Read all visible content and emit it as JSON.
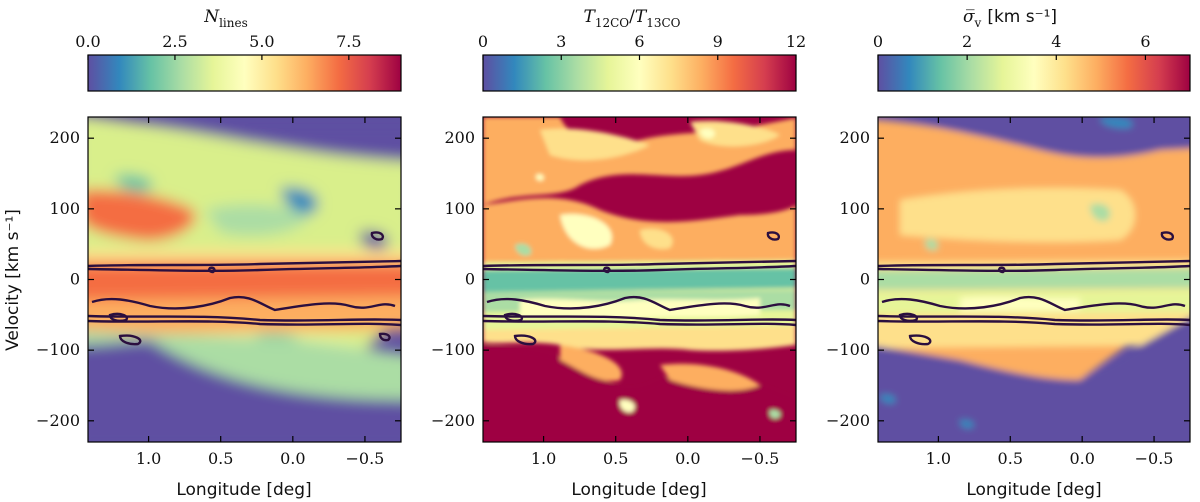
{
  "chart_data": [
    {
      "type": "heatmap",
      "panel": "left",
      "colorbar_title": "N_lines",
      "colorbar_title_main": "N",
      "colorbar_title_sub": "lines",
      "colorbar_range": [
        0,
        9
      ],
      "colorbar_ticks": [
        0.0,
        2.5,
        5.0,
        7.5
      ],
      "colorbar_tick_labels": [
        "0.0",
        "2.5",
        "5.0",
        "7.5"
      ],
      "xlabel": "Longitude [deg]",
      "ylabel": "Velocity [km s⁻¹]",
      "xlim": [
        1.42,
        -0.75
      ],
      "ylim": [
        -230,
        230
      ],
      "xticks": [
        1.0,
        0.5,
        0.0,
        -0.5
      ],
      "xtick_labels": [
        "1.0",
        "0.5",
        "0.0",
        "−0.5"
      ],
      "yticks": [
        200,
        100,
        0,
        -100,
        -200
      ],
      "ytick_labels": [
        "200",
        "100",
        "0",
        "−100",
        "−200"
      ]
    },
    {
      "type": "heatmap",
      "panel": "middle",
      "colorbar_title": "T12CO/T13CO",
      "colorbar_title_a": "T",
      "colorbar_title_a_sub": "12CO",
      "colorbar_title_slash": "/",
      "colorbar_title_b": "T",
      "colorbar_title_b_sub": "13CO",
      "colorbar_range": [
        0,
        12
      ],
      "colorbar_ticks": [
        0,
        3,
        6,
        9,
        12
      ],
      "colorbar_tick_labels": [
        "0",
        "3",
        "6",
        "9",
        "12"
      ],
      "xlabel": "Longitude [deg]",
      "xlim": [
        1.42,
        -0.75
      ],
      "ylim": [
        -230,
        230
      ],
      "xticks": [
        1.0,
        0.5,
        0.0,
        -0.5
      ],
      "xtick_labels": [
        "1.0",
        "0.5",
        "0.0",
        "−0.5"
      ],
      "yticks": [
        200,
        100,
        0,
        -100,
        -200
      ],
      "ytick_labels": [
        "200",
        "100",
        "0",
        "−100",
        "−200"
      ]
    },
    {
      "type": "heatmap",
      "panel": "right",
      "colorbar_title": "σ̅_v [km s⁻¹]",
      "colorbar_title_main": "σ̅",
      "colorbar_title_sub": "v",
      "colorbar_title_unit": "[km s⁻¹]",
      "colorbar_range": [
        0,
        7
      ],
      "colorbar_ticks": [
        0,
        2,
        4,
        6
      ],
      "colorbar_tick_labels": [
        "0",
        "2",
        "4",
        "6"
      ],
      "xlabel": "Longitude [deg]",
      "xlim": [
        1.42,
        -0.75
      ],
      "ylim": [
        -230,
        230
      ],
      "xticks": [
        1.0,
        0.5,
        0.0,
        -0.5
      ],
      "xtick_labels": [
        "1.0",
        "0.5",
        "0.0",
        "−0.5"
      ],
      "yticks": [
        200,
        100,
        0,
        -100,
        -200
      ],
      "ytick_labels": [
        "200",
        "100",
        "0",
        "−100",
        "−200"
      ]
    }
  ],
  "colormap_stops": [
    "#5e4fa2",
    "#3288bd",
    "#66c2a5",
    "#abdda4",
    "#e6f598",
    "#ffffbf",
    "#fee08b",
    "#fdae61",
    "#f46d43",
    "#d53e4f",
    "#9e0142"
  ],
  "contour_color": "#2b0f3f"
}
